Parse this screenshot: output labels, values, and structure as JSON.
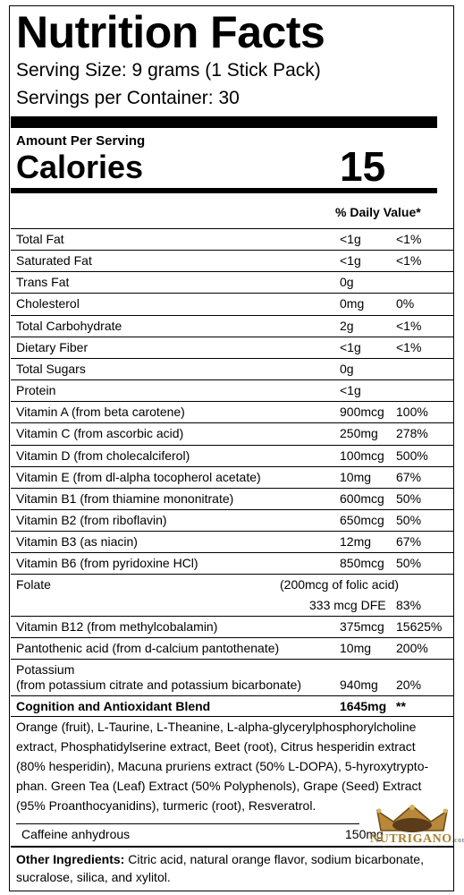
{
  "header": {
    "title": "Nutrition Facts",
    "serving_size": "Serving Size: 9 grams (1 Stick Pack)",
    "servings_per_container": "Servings per Container: 30"
  },
  "calories": {
    "amount_per_serving": "Amount Per Serving",
    "label": "Calories",
    "value": "15"
  },
  "daily_value_header": "% Daily Value*",
  "nutrients": [
    {
      "name": "Total Fat",
      "amount": "<1g",
      "dv": "<1%"
    },
    {
      "name": "Saturated Fat",
      "amount": "<1g",
      "dv": "<1%"
    },
    {
      "name": "Trans Fat",
      "amount": "0g",
      "dv": ""
    },
    {
      "name": "Cholesterol",
      "amount": "0mg",
      "dv": "0%"
    },
    {
      "name": "Total Carbohydrate",
      "amount": "2g",
      "dv": "<1%"
    },
    {
      "name": "Dietary Fiber",
      "amount": "<1g",
      "dv": "<1%"
    },
    {
      "name": "Total Sugars",
      "amount": "0g",
      "dv": ""
    },
    {
      "name": "Protein",
      "amount": "<1g",
      "dv": ""
    },
    {
      "name": "Vitamin A (from beta carotene)",
      "amount": "900mcg",
      "dv": "100%"
    },
    {
      "name": "Vitamin C (from ascorbic acid)",
      "amount": "250mg",
      "dv": "278%"
    },
    {
      "name": "Vitamin D (from cholecalciferol)",
      "amount": "100mcg",
      "dv": "500%"
    },
    {
      "name": "Vitamin E (from dl-alpha tocopherol acetate)",
      "amount": "10mg",
      "dv": "67%"
    },
    {
      "name": "Vitamin B1 (from thiamine mononitrate)",
      "amount": "600mcg",
      "dv": "50%"
    },
    {
      "name": "Vitamin B2 (from riboflavin)",
      "amount": "650mcg",
      "dv": "50%"
    },
    {
      "name": "Vitamin B3 (as niacin)",
      "amount": "12mg",
      "dv": "67%"
    },
    {
      "name": "Vitamin B6 (from pyridoxine HCl)",
      "amount": "850mcg",
      "dv": "50%"
    }
  ],
  "folate": {
    "name": "Folate",
    "note": "(200mcg of folic acid)",
    "amount": "333 mcg DFE",
    "dv": "83%"
  },
  "b12": {
    "name": "Vitamin B12 (from methylcobalamin)",
    "amount": "375mcg",
    "dv": "15625%"
  },
  "pantothenic": {
    "name": "Pantothenic acid (from d-calcium pantothenate)",
    "amount": "10mg",
    "dv": "200%"
  },
  "potassium": {
    "name": "Potassium",
    "source": "(from potassium citrate and potassium bicarbonate)",
    "amount": "940mg",
    "dv": "20%"
  },
  "blend": {
    "name": "Cognition and Antioxidant Blend",
    "amount": "1645mg",
    "dv": "**",
    "ingredients": "Orange (fruit), L-Taurine, L-Theanine, L-alpha-glycerylphosphorylcholine extract, Phosphatidylserine extract, Beet (root), Citrus hesperidin extract (80% hesperidin), Macuna pruriens extract (50% L-DOPA), 5-hyroxytrypto-phan. Green Tea (Leaf) Extract (50% Polyphenols), Grape (Seed) Extract (95% Proanthocyanidins), turmeric (root), Resveratrol."
  },
  "caffeine": {
    "name": "Caffeine anhydrous",
    "amount": "150mg"
  },
  "other_ingredients": {
    "label": "Other Ingredients:",
    "text": " Citric acid, natural orange flavor, sodium bicarbonate, sucralose, silica, and xylitol."
  },
  "watermark": {
    "brand": "NUTRIGANO",
    "suffix": ".com",
    "icon": "crown-icon",
    "color": "#a8812f"
  }
}
